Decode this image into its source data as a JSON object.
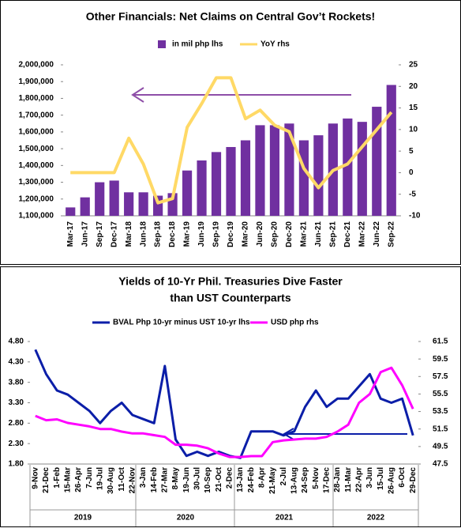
{
  "chart_data": [
    {
      "type": "bar",
      "title": "Other Financials: Net Claims on Central Gov’t Rockets!",
      "categories": [
        "Mar-17",
        "Jun-17",
        "Sep-17",
        "Dec-17",
        "Mar-18",
        "Jun-18",
        "Sep-18",
        "Dec-18",
        "Mar-19",
        "Jun-19",
        "Sep-19",
        "Dec-19",
        "Mar-20",
        "Jun-20",
        "Sep-20",
        "Dec-20",
        "Mar-21",
        "Jun-21",
        "Sep-21",
        "Dec-21",
        "Mar-22",
        "Jun-22",
        "Sep-22"
      ],
      "series": [
        {
          "name": "in mil php lhs",
          "color": "#7030a0",
          "values": [
            1150000,
            1210000,
            1300000,
            1310000,
            1240000,
            1240000,
            1220000,
            1235000,
            1370000,
            1430000,
            1480000,
            1510000,
            1550000,
            1640000,
            1640000,
            1650000,
            1550000,
            1580000,
            1650000,
            1680000,
            1660000,
            1750000,
            1880000
          ]
        },
        {
          "name": "YoY rhs",
          "color": "#ffd966",
          "type": "line",
          "axis": "y2",
          "values": [
            0,
            0,
            0,
            0,
            8,
            2,
            -7,
            -6,
            10.5,
            16,
            22,
            22,
            12.5,
            14.5,
            11,
            9.5,
            1,
            -3.5,
            0.5,
            2,
            6,
            10,
            14
          ]
        }
      ],
      "ylim": [
        1100000,
        2000000
      ],
      "yticks": [
        {
          "value": 1100000,
          "label": "1,100,000"
        },
        {
          "value": 1200000,
          "label": "1,200,000"
        },
        {
          "value": 1300000,
          "label": "1,300,000"
        },
        {
          "value": 1400000,
          "label": "1,400,000"
        },
        {
          "value": 1500000,
          "label": "1,500,000"
        },
        {
          "value": 1600000,
          "label": "1,600,000"
        },
        {
          "value": 1700000,
          "label": "1,700,000"
        },
        {
          "value": 1800000,
          "label": "1,800,000"
        },
        {
          "value": 1900000,
          "label": "1,900,000"
        },
        {
          "value": 2000000,
          "label": "2,000,000"
        }
      ],
      "y2lim": [
        -10,
        25
      ],
      "y2ticks": [
        -10,
        -5,
        0,
        5,
        10,
        15,
        20,
        25
      ]
    },
    {
      "type": "line",
      "title": [
        "Yields of 10-Yr Phil. Treasuries Dive Faster",
        "than UST Counterparts"
      ],
      "categories": [
        "9-Nov",
        "21-Dec",
        "1-Feb",
        "15-Mar",
        "26-Apr",
        "7-Jun",
        "19-Jul",
        "30-Aug",
        "11-Oct",
        "22-Nov",
        "3-Jan",
        "14-Feb",
        "27-Mar",
        "8-May",
        "19-Jun",
        "30-Jul",
        "10-Sep",
        "21-Oct",
        "2-Dec",
        "13-Jan",
        "24-Feb",
        "8-Apr",
        "21-May",
        "2-Jul",
        "13-Aug",
        "24-Sep",
        "5-Nov",
        "17-Dec",
        "28-Jan",
        "11-Mar",
        "22-Apr",
        "3-Jun",
        "15-Jul",
        "26-Aug",
        "6-Oct",
        "29-Dec"
      ],
      "year_labels": [
        "2019",
        "2020",
        "2021",
        "2022"
      ],
      "series": [
        {
          "name": "BVAL Php 10-yr minus UST 10-yr lhs",
          "color": "#0b1ea8",
          "values": [
            4.6,
            4.0,
            3.6,
            3.5,
            3.3,
            3.1,
            2.8,
            3.1,
            3.3,
            3.0,
            2.9,
            2.8,
            4.2,
            2.4,
            2.0,
            2.1,
            2.0,
            2.1,
            2.0,
            1.95,
            2.6,
            2.6,
            2.6,
            2.5,
            2.6,
            3.2,
            3.6,
            3.2,
            3.4,
            3.4,
            3.7,
            4.0,
            3.4,
            3.3,
            3.4,
            2.5
          ]
        },
        {
          "name": "USD php rhs",
          "color": "#ff00ff",
          "axis": "y2",
          "values": [
            53.0,
            52.5,
            52.6,
            52.2,
            52.0,
            51.8,
            51.5,
            51.5,
            51.2,
            51.0,
            51.0,
            50.8,
            50.6,
            49.7,
            49.7,
            49.6,
            49.3,
            48.7,
            48.3,
            48.3,
            48.4,
            48.4,
            50.0,
            50.2,
            50.3,
            50.4,
            50.4,
            50.6,
            51.2,
            52.0,
            54.5,
            55.5,
            58.0,
            58.5,
            56.5,
            53.8
          ]
        }
      ],
      "ylim": [
        1.8,
        4.8
      ],
      "yticks": [
        {
          "value": 1.8,
          "label": "1.80"
        },
        {
          "value": 2.3,
          "label": "2.30"
        },
        {
          "value": 2.8,
          "label": "2.80"
        },
        {
          "value": 3.3,
          "label": "3.30"
        },
        {
          "value": 3.8,
          "label": "3.80"
        },
        {
          "value": 4.3,
          "label": "4.30"
        },
        {
          "value": 4.8,
          "label": "4.80"
        }
      ],
      "y2lim": [
        47.5,
        61.5
      ],
      "y2ticks": [
        47.5,
        49.5,
        51.5,
        53.5,
        55.5,
        57.5,
        59.5,
        61.5
      ]
    }
  ]
}
